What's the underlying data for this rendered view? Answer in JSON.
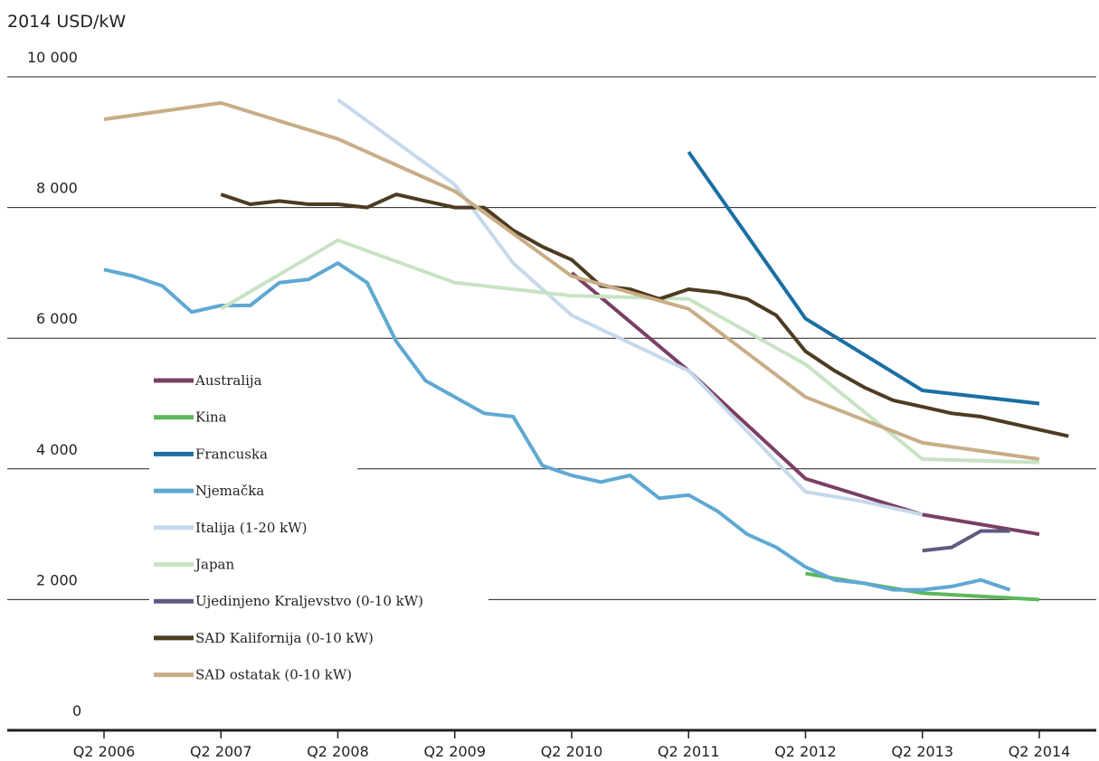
{
  "chart_data": {
    "type": "line",
    "unit_label": "2014 USD/kW",
    "ylim": [
      0,
      10000
    ],
    "yticks": [
      0,
      2000,
      4000,
      6000,
      8000,
      10000
    ],
    "ytick_labels": [
      "0",
      "2 000",
      "4 000",
      "6 000",
      "8 000",
      "10 000"
    ],
    "xlim": [
      2006.0,
      2014.5
    ],
    "xticks": [
      2006,
      2007,
      2008,
      2009,
      2010,
      2011,
      2012,
      2013,
      2014
    ],
    "xtick_labels": [
      "Q2 2006",
      "Q2 2007",
      "Q2 2008",
      "Q2 2009",
      "Q2 2010",
      "Q2 2011",
      "Q2 2012",
      "Q2 2013",
      "Q2 2014"
    ],
    "grid": "horizontal",
    "legend_position": "left",
    "series": [
      {
        "name": "Australija",
        "color": "#7b3f63",
        "points": [
          [
            2010.0,
            7000
          ],
          [
            2011.0,
            5500
          ],
          [
            2012.0,
            3850
          ],
          [
            2013.0,
            3300
          ],
          [
            2014.0,
            3000
          ]
        ]
      },
      {
        "name": "Kina",
        "color": "#5cb85c",
        "points": [
          [
            2012.0,
            2400
          ],
          [
            2013.0,
            2100
          ],
          [
            2014.0,
            2000
          ]
        ]
      },
      {
        "name": "Francuska",
        "color": "#1a6fa3",
        "points": [
          [
            2011.0,
            8850
          ],
          [
            2012.0,
            6300
          ],
          [
            2013.0,
            5200
          ],
          [
            2014.0,
            5000
          ]
        ]
      },
      {
        "name": "Njemačka",
        "color": "#5fa8d3",
        "points": [
          [
            2006.0,
            7050
          ],
          [
            2006.25,
            6950
          ],
          [
            2006.5,
            6800
          ],
          [
            2006.75,
            6400
          ],
          [
            2007.0,
            6500
          ],
          [
            2007.25,
            6500
          ],
          [
            2007.5,
            6850
          ],
          [
            2007.75,
            6900
          ],
          [
            2008.0,
            7150
          ],
          [
            2008.25,
            6850
          ],
          [
            2008.5,
            5950
          ],
          [
            2008.75,
            5350
          ],
          [
            2009.0,
            5100
          ],
          [
            2009.25,
            4850
          ],
          [
            2009.5,
            4800
          ],
          [
            2009.75,
            4050
          ],
          [
            2010.0,
            3900
          ],
          [
            2010.25,
            3800
          ],
          [
            2010.5,
            3900
          ],
          [
            2010.75,
            3550
          ],
          [
            2011.0,
            3600
          ],
          [
            2011.25,
            3350
          ],
          [
            2011.5,
            3000
          ],
          [
            2011.75,
            2800
          ],
          [
            2012.0,
            2500
          ],
          [
            2012.25,
            2300
          ],
          [
            2012.5,
            2250
          ],
          [
            2012.75,
            2150
          ],
          [
            2013.0,
            2150
          ],
          [
            2013.25,
            2200
          ],
          [
            2013.5,
            2300
          ],
          [
            2013.75,
            2150
          ]
        ]
      },
      {
        "name": "Italija (1-20 kW)",
        "color": "#c6d9ec",
        "points": [
          [
            2008.0,
            9650
          ],
          [
            2009.0,
            8350
          ],
          [
            2009.5,
            7150
          ],
          [
            2010.0,
            6350
          ],
          [
            2011.0,
            5500
          ],
          [
            2012.0,
            3650
          ],
          [
            2012.5,
            3500
          ],
          [
            2013.0,
            3300
          ]
        ]
      },
      {
        "name": "Japan",
        "color": "#c7e3c3",
        "points": [
          [
            2007.0,
            6450
          ],
          [
            2008.0,
            7500
          ],
          [
            2009.0,
            6850
          ],
          [
            2010.0,
            6650
          ],
          [
            2011.0,
            6600
          ],
          [
            2012.0,
            5600
          ],
          [
            2013.0,
            4150
          ],
          [
            2014.0,
            4100
          ]
        ]
      },
      {
        "name": "Ujedinjeno Kraljevstvo (0-10 kW)",
        "color": "#5e5a82",
        "points": [
          [
            2013.0,
            2750
          ],
          [
            2013.25,
            2800
          ],
          [
            2013.5,
            3050
          ],
          [
            2013.75,
            3050
          ]
        ]
      },
      {
        "name": "SAD Kalifornija (0-10 kW)",
        "color": "#4d3b22",
        "points": [
          [
            2007.0,
            8200
          ],
          [
            2007.25,
            8050
          ],
          [
            2007.5,
            8100
          ],
          [
            2007.75,
            8050
          ],
          [
            2008.0,
            8050
          ],
          [
            2008.25,
            8000
          ],
          [
            2008.5,
            8200
          ],
          [
            2008.75,
            8100
          ],
          [
            2009.0,
            8000
          ],
          [
            2009.25,
            8000
          ],
          [
            2009.5,
            7650
          ],
          [
            2009.75,
            7400
          ],
          [
            2010.0,
            7200
          ],
          [
            2010.25,
            6800
          ],
          [
            2010.5,
            6750
          ],
          [
            2010.75,
            6600
          ],
          [
            2011.0,
            6750
          ],
          [
            2011.25,
            6700
          ],
          [
            2011.5,
            6600
          ],
          [
            2011.75,
            6350
          ],
          [
            2012.0,
            5800
          ],
          [
            2012.25,
            5500
          ],
          [
            2012.5,
            5250
          ],
          [
            2012.75,
            5050
          ],
          [
            2013.0,
            4950
          ],
          [
            2013.25,
            4850
          ],
          [
            2013.5,
            4800
          ],
          [
            2013.75,
            4700
          ],
          [
            2014.0,
            4600
          ],
          [
            2014.25,
            4500
          ]
        ]
      },
      {
        "name": "SAD ostatak (0-10 kW)",
        "color": "#c8ad87",
        "points": [
          [
            2006.0,
            9350
          ],
          [
            2007.0,
            9600
          ],
          [
            2008.0,
            9050
          ],
          [
            2009.0,
            8250
          ],
          [
            2010.0,
            6950
          ],
          [
            2011.0,
            6450
          ],
          [
            2012.0,
            5100
          ],
          [
            2013.0,
            4400
          ],
          [
            2014.0,
            4150
          ]
        ]
      }
    ]
  }
}
